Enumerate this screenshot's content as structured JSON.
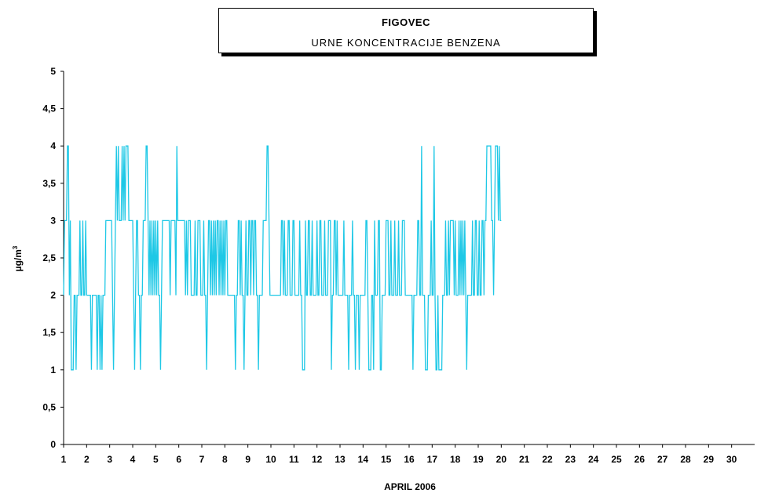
{
  "chart_data": {
    "type": "line",
    "title": "FIGOVEC",
    "subtitle": "URNE KONCENTRACIJE BENZENA",
    "xlabel": "APRIL 2006",
    "ylabel": "µg/m3",
    "ylim": [
      0,
      5
    ],
    "xlim": [
      1,
      31
    ],
    "yticks": [
      "0",
      "0,5",
      "1",
      "1,5",
      "2",
      "2,5",
      "3",
      "3,5",
      "4",
      "4,5",
      "5"
    ],
    "xticks": [
      "1",
      "2",
      "3",
      "4",
      "5",
      "6",
      "7",
      "8",
      "9",
      "10",
      "11",
      "12",
      "13",
      "14",
      "15",
      "16",
      "17",
      "18",
      "19",
      "20",
      "21",
      "22",
      "23",
      "24",
      "25",
      "26",
      "27",
      "28",
      "29",
      "30"
    ],
    "grid": false,
    "series": [
      {
        "color": "#1ec8e6",
        "x_start_day": 1,
        "step_hours": 1,
        "values": [
          2,
          3,
          3,
          3,
          4,
          4,
          2,
          3,
          1,
          1,
          1,
          2,
          2,
          1,
          2,
          2,
          2,
          3,
          2,
          2,
          3,
          2,
          2,
          3,
          2,
          2,
          2,
          2,
          2,
          1,
          2,
          2,
          2,
          2,
          2,
          1,
          2,
          2,
          1,
          2,
          1,
          2,
          2,
          2,
          3,
          3,
          3,
          3,
          3,
          3,
          3,
          2,
          1,
          2,
          3,
          4,
          3,
          4,
          3,
          3,
          3,
          4,
          3,
          4,
          3,
          4,
          4,
          4,
          3,
          3,
          3,
          3,
          3,
          2,
          1,
          2,
          3,
          3,
          2,
          2,
          1,
          2,
          2,
          3,
          3,
          3,
          4,
          4,
          3,
          2,
          3,
          2,
          3,
          2,
          3,
          2,
          3,
          2,
          3,
          2,
          2,
          1,
          2,
          3,
          3,
          3,
          3,
          3,
          3,
          3,
          3,
          2,
          3,
          3,
          3,
          3,
          3,
          2,
          4,
          3,
          3,
          3,
          3,
          3,
          3,
          3,
          3,
          2,
          3,
          2,
          3,
          3,
          3,
          2,
          2,
          2,
          2,
          3,
          2,
          2,
          3,
          3,
          3,
          2,
          2,
          2,
          3,
          2,
          2,
          1,
          2,
          3,
          3,
          2,
          3,
          2,
          3,
          2,
          3,
          2,
          3,
          3,
          2,
          3,
          2,
          3,
          2,
          3,
          2,
          3,
          3,
          2,
          2,
          2,
          2,
          2,
          2,
          2,
          2,
          1,
          2,
          2,
          3,
          3,
          2,
          3,
          2,
          2,
          1,
          2,
          3,
          2,
          2,
          3,
          3,
          2,
          3,
          3,
          2,
          3,
          3,
          2,
          2,
          1,
          2,
          2,
          2,
          2,
          3,
          3,
          3,
          3,
          4,
          4,
          3,
          2,
          2,
          2,
          2,
          2,
          2,
          2,
          2,
          2,
          2,
          2,
          2,
          3,
          3,
          2,
          3,
          2,
          2,
          2,
          3,
          3,
          2,
          2,
          2,
          3,
          3,
          2,
          2,
          2,
          2,
          2,
          3,
          2,
          2,
          1,
          1,
          1,
          3,
          2,
          2,
          3,
          3,
          2,
          2,
          3,
          2,
          2,
          2,
          2,
          3,
          2,
          2,
          3,
          3,
          2,
          2,
          2,
          3,
          2,
          2,
          2,
          3,
          3,
          3,
          1,
          2,
          2,
          3,
          3,
          2,
          3,
          2,
          2,
          2,
          2,
          2,
          2,
          3,
          2,
          2,
          2,
          2,
          1,
          2,
          2,
          2,
          3,
          2,
          2,
          1,
          2,
          2,
          2,
          1,
          2,
          2,
          2,
          2,
          2,
          2,
          3,
          3,
          2,
          1,
          1,
          1,
          2,
          2,
          1,
          3,
          2,
          2,
          2,
          3,
          3,
          1,
          1,
          2,
          2,
          2,
          2,
          3,
          3,
          3,
          2,
          2,
          3,
          2,
          2,
          2,
          3,
          2,
          2,
          2,
          3,
          2,
          2,
          2,
          3,
          3,
          3,
          2,
          2,
          2,
          2,
          2,
          2,
          2,
          2,
          1,
          2,
          2,
          2,
          2,
          3,
          3,
          2,
          2,
          4,
          2,
          2,
          2,
          1,
          1,
          1,
          2,
          2,
          2,
          3,
          2,
          2,
          4,
          2,
          1,
          1,
          2,
          1,
          1,
          1,
          1,
          2,
          2,
          2,
          3,
          2,
          2,
          3,
          2,
          3,
          3,
          3,
          3,
          2,
          3,
          2,
          2,
          2,
          3,
          2,
          3,
          2,
          3,
          2,
          3,
          2,
          1,
          2,
          2,
          2,
          2,
          2,
          3,
          2,
          2,
          3,
          3,
          2,
          2,
          3,
          2,
          2,
          3,
          3,
          2,
          3,
          3,
          4,
          4,
          4,
          4,
          4,
          3,
          3,
          2,
          3,
          4,
          4,
          4,
          3,
          4,
          3,
          3
        ]
      }
    ]
  }
}
